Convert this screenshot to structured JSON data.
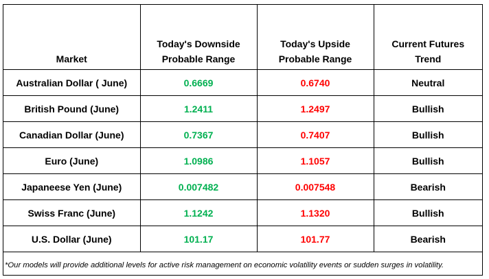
{
  "headers": {
    "market": "Market",
    "downside": [
      "Today's Downside",
      "Probable Range"
    ],
    "upside": [
      "Today's Upside",
      "Probable Range"
    ],
    "trend": [
      "Current Futures",
      "Trend"
    ]
  },
  "rows": [
    {
      "market": "Australian Dollar ( June)",
      "downside": "0.6669",
      "upside": "0.6740",
      "trend": "Neutral"
    },
    {
      "market": "British Pound (June)",
      "downside": "1.2411",
      "upside": "1.2497",
      "trend": "Bullish"
    },
    {
      "market": "Canadian Dollar (June)",
      "downside": "0.7367",
      "upside": "0.7407",
      "trend": "Bullish"
    },
    {
      "market": "Euro (June)",
      "downside": "1.0986",
      "upside": "1.1057",
      "trend": "Bullish"
    },
    {
      "market": "Japaneese Yen (June)",
      "downside": "0.007482",
      "upside": "0.007548",
      "trend": "Bearish"
    },
    {
      "market": "Swiss Franc (June)",
      "downside": "1.1242",
      "upside": "1.1320",
      "trend": "Bullish"
    },
    {
      "market": "U.S. Dollar (June)",
      "downside": "101.17",
      "upside": "101.77",
      "trend": "Bearish"
    }
  ],
  "footnote": "*Our models will provide additional levels for active risk management on economic volatility events or sudden surges in volatility.",
  "colors": {
    "downside": "#00b050",
    "upside": "#ff0000"
  }
}
